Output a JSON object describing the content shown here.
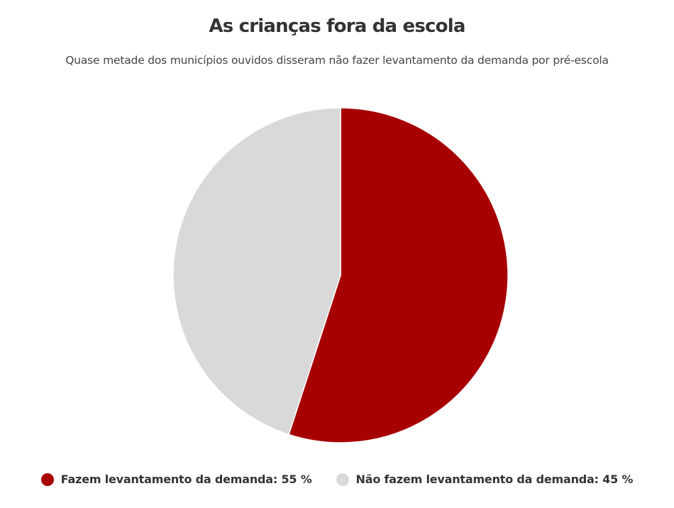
{
  "chart_data": {
    "type": "pie",
    "title": "As crianças fora da escola",
    "subtitle": "Quase metade dos municípios ouvidos disseram não fazer levantamento da demanda por pré-escola",
    "slices": [
      {
        "label": "Fazem levantamento da demanda",
        "value": 55,
        "unit": "%",
        "color": "#a80000"
      },
      {
        "label": "Não fazem levantamento da demanda",
        "value": 45,
        "unit": "%",
        "color": "#d9d9d9"
      }
    ],
    "legend_placement": "bottom",
    "start_angle": "12 o'clock",
    "direction": "clockwise"
  },
  "legend": {
    "items": [
      {
        "text": "Fazem levantamento da demanda: 55 %"
      },
      {
        "text": "Não fazem levantamento da demanda: 45 %"
      }
    ]
  }
}
